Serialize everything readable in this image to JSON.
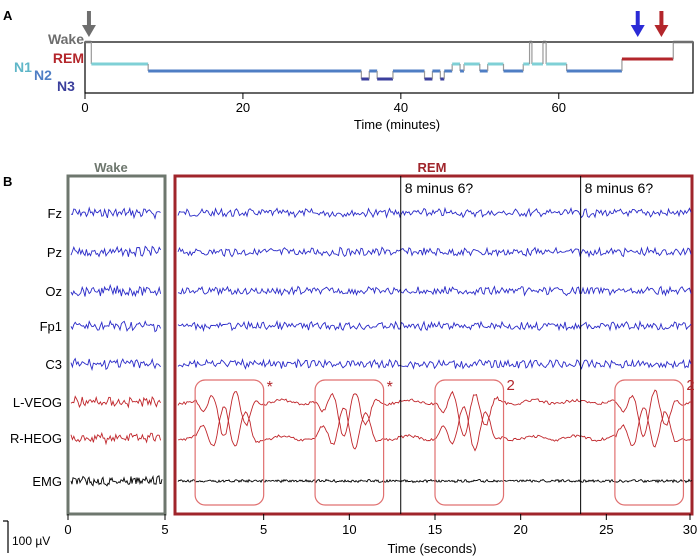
{
  "panel_a": {
    "label": "A"
  },
  "panel_b": {
    "label": "B"
  },
  "chart_data": [
    {
      "type": "line",
      "panel": "A",
      "xlabel": "Time (minutes)",
      "xlim": [
        0,
        77
      ],
      "xticks": [
        "0",
        "20",
        "40",
        "60"
      ],
      "stage_labels": [
        "Wake",
        "REM",
        "N1",
        "N2",
        "N3"
      ],
      "stage_colors": {
        "Wake": "#6e6e6e",
        "REM": "#b3262b",
        "N1": "#7fd0d6",
        "N2": "#4f7ec4",
        "N3": "#3b3f9c"
      },
      "hypnogram": [
        {
          "t0": 0,
          "t1": 0.8,
          "stage": "Wake"
        },
        {
          "t0": 0.8,
          "t1": 8,
          "stage": "N1"
        },
        {
          "t0": 8,
          "t1": 35,
          "stage": "N2"
        },
        {
          "t0": 35,
          "t1": 36,
          "stage": "N3"
        },
        {
          "t0": 36,
          "t1": 37,
          "stage": "N2"
        },
        {
          "t0": 37,
          "t1": 39,
          "stage": "N3"
        },
        {
          "t0": 39,
          "t1": 43,
          "stage": "N2"
        },
        {
          "t0": 43,
          "t1": 44,
          "stage": "N3"
        },
        {
          "t0": 44,
          "t1": 45,
          "stage": "N2"
        },
        {
          "t0": 45,
          "t1": 45.5,
          "stage": "N3"
        },
        {
          "t0": 45.5,
          "t1": 46.5,
          "stage": "N2"
        },
        {
          "t0": 46.5,
          "t1": 47.5,
          "stage": "N1"
        },
        {
          "t0": 47.5,
          "t1": 48,
          "stage": "N2"
        },
        {
          "t0": 48,
          "t1": 50,
          "stage": "N1"
        },
        {
          "t0": 50,
          "t1": 51,
          "stage": "N2"
        },
        {
          "t0": 51,
          "t1": 53,
          "stage": "N1"
        },
        {
          "t0": 53,
          "t1": 55.5,
          "stage": "N2"
        },
        {
          "t0": 55.5,
          "t1": 56.3,
          "stage": "N1"
        },
        {
          "t0": 56.3,
          "t1": 56.6,
          "stage": "Wake"
        },
        {
          "t0": 56.6,
          "t1": 58,
          "stage": "N1"
        },
        {
          "t0": 58,
          "t1": 58.4,
          "stage": "Wake"
        },
        {
          "t0": 58.4,
          "t1": 61,
          "stage": "N1"
        },
        {
          "t0": 61,
          "t1": 68,
          "stage": "N2"
        },
        {
          "t0": 68,
          "t1": 74.5,
          "stage": "REM"
        },
        {
          "t0": 74.5,
          "t1": 77,
          "stage": "Wake"
        }
      ],
      "arrows": [
        {
          "t": 0.5,
          "color": "#6e6e6e"
        },
        {
          "t": 70,
          "color": "#2b2bd6"
        },
        {
          "t": 73,
          "color": "#b3262b"
        }
      ]
    },
    {
      "type": "line",
      "panel": "B",
      "xlabel": "Time (seconds)",
      "wake_title": "Wake",
      "rem_title": "REM",
      "wake_xlim": [
        0,
        5
      ],
      "wake_xticks": [
        "0",
        "5"
      ],
      "rem_xlim": [
        0,
        30
      ],
      "rem_xticks": [
        "5",
        "10",
        "15",
        "20",
        "25",
        "30"
      ],
      "channels": [
        {
          "name": "Fz",
          "color": "#2b2bc8"
        },
        {
          "name": "Pz",
          "color": "#2b2bc8"
        },
        {
          "name": "Oz",
          "color": "#2b2bc8"
        },
        {
          "name": "Fp1",
          "color": "#2b2bc8"
        },
        {
          "name": "C3",
          "color": "#2b2bc8"
        },
        {
          "name": "L-VEOG",
          "color": "#c0262b"
        },
        {
          "name": "R-HEOG",
          "color": "#c0262b"
        },
        {
          "name": "EMG",
          "color": "#000000"
        }
      ],
      "event_lines": [
        {
          "t": 13,
          "label": "8 minus 6?"
        },
        {
          "t": 23.5,
          "label": "8 minus 6?"
        }
      ],
      "eye_movement_boxes": [
        {
          "t0": 1,
          "t1": 5,
          "mark": "*"
        },
        {
          "t0": 8,
          "t1": 12,
          "mark": "*"
        },
        {
          "t0": 15,
          "t1": 19,
          "mark": "2"
        },
        {
          "t0": 25.5,
          "t1": 29.5,
          "mark": "2"
        }
      ],
      "scale_bar_label": "100 µV",
      "colors": {
        "wake_box": "#6e776e",
        "rem_box": "#a0252b",
        "eye_box": "#e07070"
      }
    }
  ]
}
